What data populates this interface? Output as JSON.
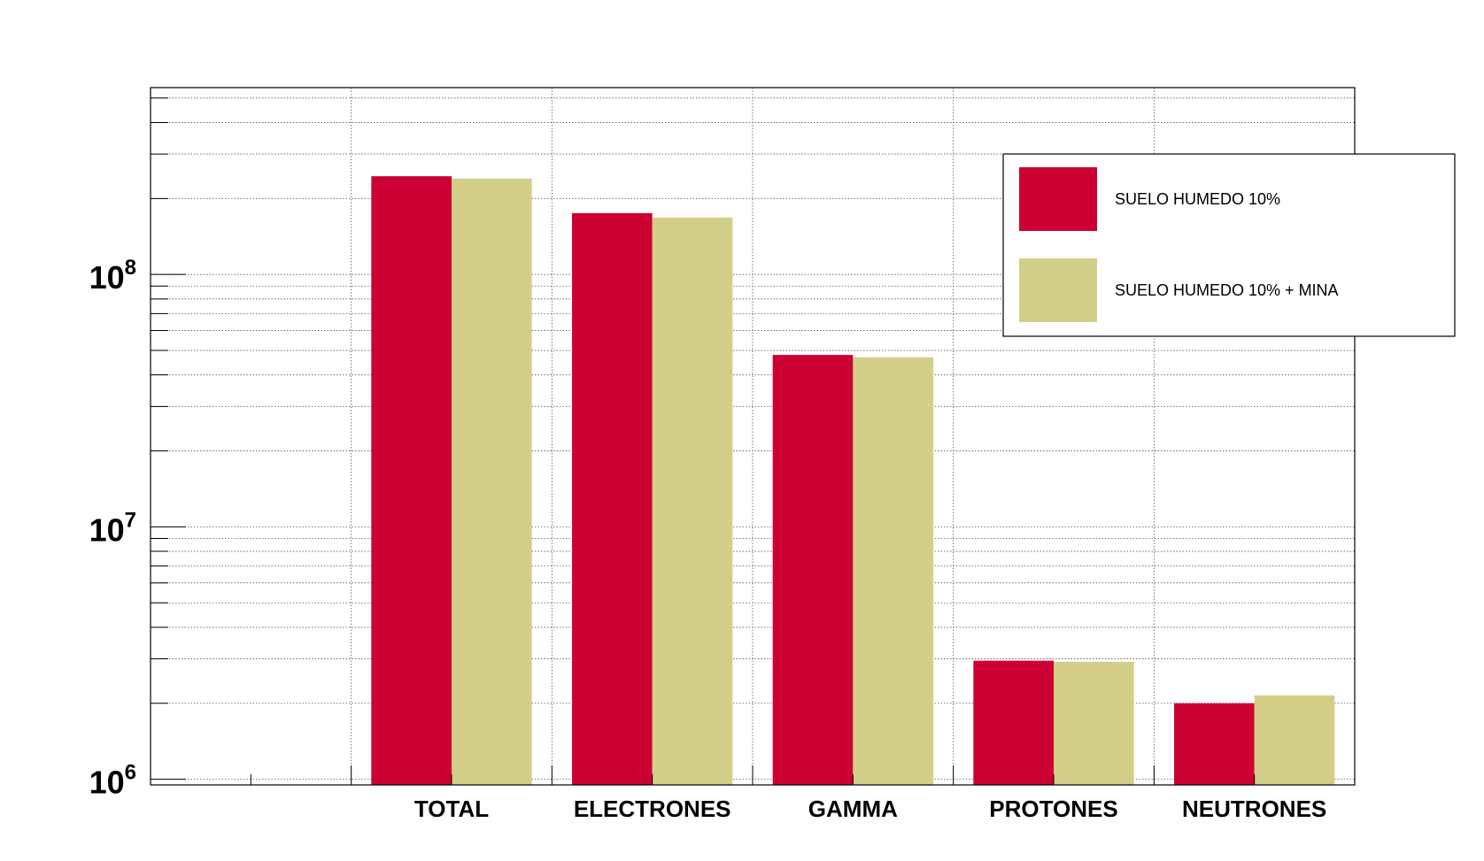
{
  "chart_data": {
    "type": "bar",
    "scale": "log",
    "ylim": [
      950000,
      550000000
    ],
    "grid": true,
    "legend_position": "top-right",
    "categories": [
      "",
      "TOTAL",
      "ELECTRONES",
      "GAMMA",
      "PROTONES",
      "NEUTRONES"
    ],
    "y_tick_labels": [
      {
        "value": 1000000,
        "base": "10",
        "exp": "6"
      },
      {
        "value": 10000000,
        "base": "10",
        "exp": "7"
      },
      {
        "value": 100000000,
        "base": "10",
        "exp": "8"
      }
    ],
    "series": [
      {
        "name": "SUELO HUMEDO 10%",
        "color": "#cc0033",
        "values": [
          950000,
          245000000,
          175000000,
          48000000,
          2950000,
          2000000
        ]
      },
      {
        "name": "SUELO HUMEDO 10% + MINA",
        "color": "#d4cf88",
        "values": [
          950000,
          240000000,
          168000000,
          47000000,
          2920000,
          2150000
        ]
      }
    ]
  }
}
